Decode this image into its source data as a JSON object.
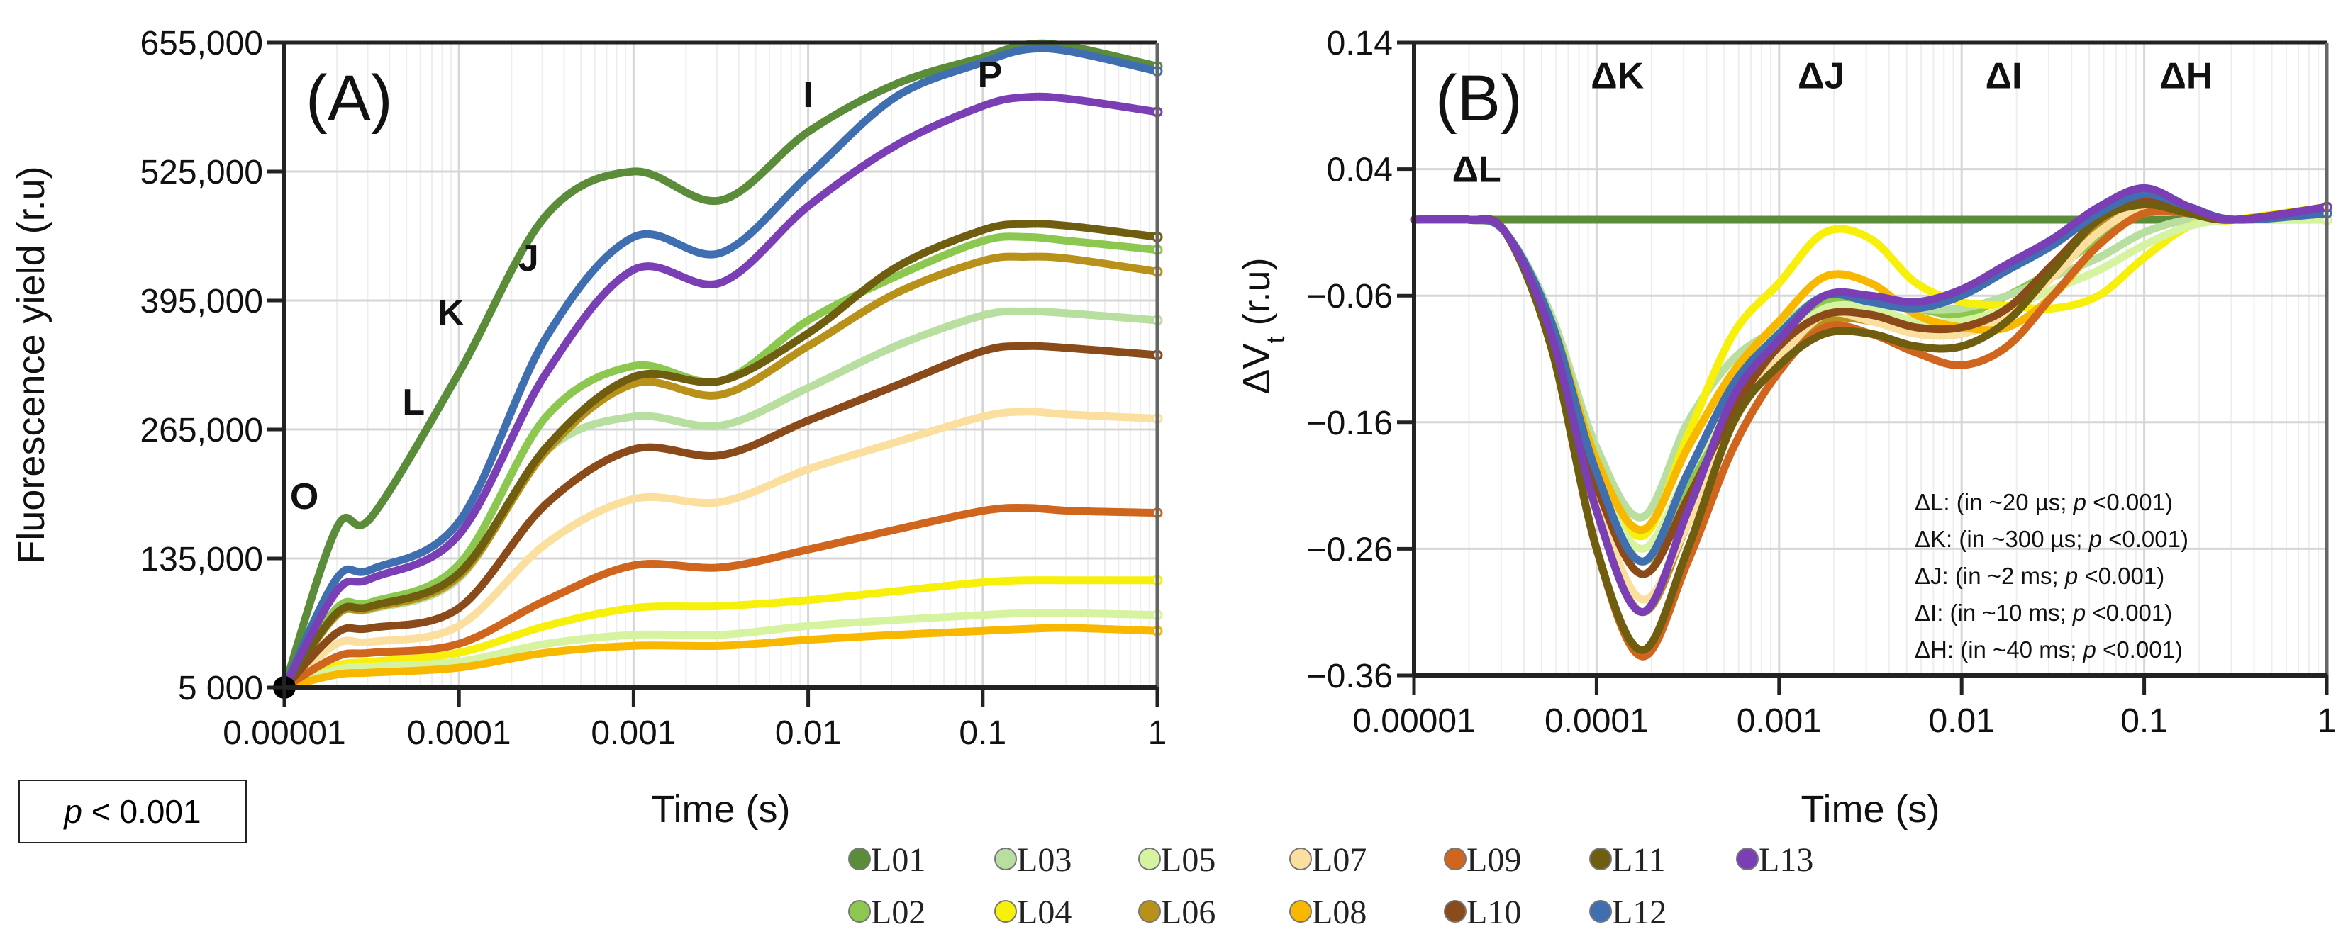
{
  "p_box": {
    "p": "p",
    "rest": " < 0.001"
  },
  "chart_data": [
    {
      "type": "line",
      "panel_label": "(A)",
      "xlabel": "Time (s)",
      "ylabel": "Fluorescence yield (r.u)",
      "xscale": "log",
      "xlim": [
        1e-05,
        1
      ],
      "ylim": [
        5000,
        655000
      ],
      "xticks": [
        "0.00001",
        "0.0001",
        "0.001",
        "0.01",
        "0.1",
        "1"
      ],
      "yticks": [
        {
          "v": 655000,
          "label": "655,000"
        },
        {
          "v": 525000,
          "label": "525,000"
        },
        {
          "v": 395000,
          "label": "395,000"
        },
        {
          "v": 265000,
          "label": "265,000"
        },
        {
          "v": 135000,
          "label": "135,000"
        },
        {
          "v": 5000,
          "label": "5 000"
        }
      ],
      "grid": true,
      "annotations": [
        {
          "text": "O",
          "t": 1.3e-05,
          "v": 185000
        },
        {
          "text": "L",
          "t": 5.5e-05,
          "v": 280000
        },
        {
          "text": "K",
          "t": 9e-05,
          "v": 370000
        },
        {
          "text": "J",
          "t": 0.00025,
          "v": 425000
        },
        {
          "text": "I",
          "t": 0.01,
          "v": 590000
        },
        {
          "text": "P",
          "t": 0.11,
          "v": 610000
        }
      ],
      "log_t": [
        -5,
        -4.7,
        -4.5,
        -4,
        -3.5,
        -3,
        -2.5,
        -2,
        -1.5,
        -1,
        -0.75,
        -0.5,
        0
      ],
      "series": [
        {
          "name": "L01",
          "values": [
            5000,
            166000,
            177000,
            322000,
            481000,
            525000,
            496000,
            565000,
            613000,
            640000,
            653000,
            651000,
            631000
          ]
        },
        {
          "name": "L02",
          "values": [
            5000,
            85000,
            91000,
            129000,
            278000,
            329000,
            314000,
            375000,
            419000,
            455000,
            459000,
            455000,
            446000
          ]
        },
        {
          "name": "L03",
          "values": [
            5000,
            78000,
            84000,
            115000,
            243000,
            278000,
            269000,
            307000,
            349000,
            380000,
            384000,
            382000,
            375000
          ]
        },
        {
          "name": "L04",
          "values": [
            5000,
            27000,
            31000,
            40000,
            67000,
            85000,
            87000,
            93000,
            102000,
            111000,
            113000,
            113000,
            113000
          ]
        },
        {
          "name": "L05",
          "values": [
            5000,
            23000,
            26000,
            31000,
            49000,
            58000,
            58000,
            67000,
            73000,
            78000,
            80000,
            80000,
            78000
          ]
        },
        {
          "name": "L06",
          "values": [
            5000,
            78000,
            85000,
            117000,
            243000,
            311000,
            300000,
            349000,
            402000,
            435000,
            439000,
            437000,
            424000
          ]
        },
        {
          "name": "L07",
          "values": [
            5000,
            49000,
            51000,
            67000,
            150000,
            195000,
            192000,
            225000,
            252000,
            278000,
            283000,
            280000,
            276000
          ]
        },
        {
          "name": "L08",
          "values": [
            5000,
            18000,
            20000,
            25000,
            40000,
            47000,
            47000,
            53000,
            58000,
            62000,
            64000,
            65000,
            62000
          ]
        },
        {
          "name": "L09",
          "values": [
            5000,
            36000,
            40000,
            49000,
            93000,
            128000,
            126000,
            144000,
            164000,
            183000,
            186000,
            183000,
            181000
          ]
        },
        {
          "name": "L10",
          "values": [
            5000,
            60000,
            65000,
            85000,
            190000,
            245000,
            239000,
            274000,
            309000,
            344000,
            349000,
            347000,
            340000
          ]
        },
        {
          "name": "L11",
          "values": [
            5000,
            80000,
            87000,
            120000,
            247000,
            318000,
            314000,
            362000,
            428000,
            466000,
            472000,
            470000,
            459000
          ]
        },
        {
          "name": "L12",
          "values": [
            5000,
            115000,
            124000,
            172000,
            358000,
            459000,
            443000,
            521000,
            600000,
            635000,
            648000,
            646000,
            626000
          ]
        },
        {
          "name": "L13",
          "values": [
            5000,
            102000,
            115000,
            159000,
            322000,
            426000,
            413000,
            490000,
            551000,
            591000,
            600000,
            598000,
            585000
          ]
        }
      ]
    },
    {
      "type": "line",
      "panel_label": "(B)",
      "xlabel": "Time (s)",
      "ylabel": "ΔV",
      "ylabel_sub": "t",
      "ylabel_rest": " (r.u)",
      "xscale": "log",
      "xlim": [
        1e-05,
        1
      ],
      "ylim": [
        -0.36,
        0.14
      ],
      "xticks": [
        "0.00001",
        "0.0001",
        "0.001",
        "0.01",
        "0.1",
        "1"
      ],
      "yticks": [
        {
          "v": 0.14,
          "label": "0.14"
        },
        {
          "v": 0.04,
          "label": "0.04"
        },
        {
          "v": -0.06,
          "label": "−0.06"
        },
        {
          "v": -0.16,
          "label": "−0.16"
        },
        {
          "v": -0.26,
          "label": "−0.26"
        },
        {
          "v": -0.36,
          "label": "−0.36"
        }
      ],
      "grid": true,
      "annotations": [
        {
          "text": "ΔL",
          "t": 2.2e-05,
          "v": 0.03
        },
        {
          "text": "ΔK",
          "t": 0.00013,
          "v": 0.104
        },
        {
          "text": "ΔJ",
          "t": 0.0017,
          "v": 0.104
        },
        {
          "text": "ΔI",
          "t": 0.017,
          "v": 0.104
        },
        {
          "text": "ΔH",
          "t": 0.17,
          "v": 0.104
        }
      ],
      "stats": [
        {
          "pre": "ΔL: (in ~20 µs; ",
          "p": "p",
          "post": " <0.001)"
        },
        {
          "pre": "ΔK: (in ~300 µs; ",
          "p": "p",
          "post": " <0.001)"
        },
        {
          "pre": "ΔJ: (in ~2 ms; ",
          "p": "p",
          "post": " <0.001)"
        },
        {
          "pre": "ΔI: (in ~10 ms; ",
          "p": "p",
          "post": " <0.001)"
        },
        {
          "pre": "ΔH: (in ~40 ms; ",
          "p": "p",
          "post": " <0.001)"
        }
      ],
      "log_t": [
        -5,
        -4.7,
        -4.5,
        -4.25,
        -4,
        -3.75,
        -3.5,
        -3.25,
        -3,
        -2.75,
        -2.5,
        -2.25,
        -2,
        -1.75,
        -1.5,
        -1.25,
        -1,
        -0.75,
        -0.5,
        0
      ],
      "series": [
        {
          "name": "L01",
          "values": [
            0,
            0,
            0,
            0,
            0,
            0,
            0,
            0,
            0,
            0,
            0,
            0,
            0,
            0,
            0,
            0,
            0,
            0,
            0,
            0
          ]
        },
        {
          "name": "L02",
          "values": [
            0,
            0,
            -0.01,
            -0.08,
            -0.2,
            -0.27,
            -0.21,
            -0.14,
            -0.1,
            -0.065,
            -0.065,
            -0.07,
            -0.075,
            -0.06,
            -0.04,
            -0.015,
            0.005,
            0.005,
            0,
            0.005
          ]
        },
        {
          "name": "L03",
          "values": [
            0,
            0,
            -0.01,
            -0.075,
            -0.18,
            -0.235,
            -0.16,
            -0.11,
            -0.085,
            -0.06,
            -0.06,
            -0.07,
            -0.07,
            -0.06,
            -0.045,
            -0.03,
            -0.01,
            0,
            0,
            0
          ]
        },
        {
          "name": "L04",
          "values": [
            0,
            0,
            -0.01,
            -0.08,
            -0.19,
            -0.25,
            -0.17,
            -0.09,
            -0.05,
            -0.01,
            -0.015,
            -0.05,
            -0.065,
            -0.068,
            -0.07,
            -0.06,
            -0.03,
            -0.005,
            0,
            0.01
          ]
        },
        {
          "name": "L05",
          "values": [
            0,
            0,
            -0.01,
            -0.08,
            -0.2,
            -0.26,
            -0.2,
            -0.14,
            -0.1,
            -0.07,
            -0.07,
            -0.08,
            -0.08,
            -0.07,
            -0.055,
            -0.04,
            -0.02,
            -0.005,
            0,
            0
          ]
        },
        {
          "name": "L06",
          "values": [
            0,
            0,
            -0.01,
            -0.09,
            -0.23,
            -0.31,
            -0.24,
            -0.16,
            -0.11,
            -0.08,
            -0.08,
            -0.09,
            -0.09,
            -0.075,
            -0.04,
            -0.005,
            0.015,
            0.005,
            0,
            0.01
          ]
        },
        {
          "name": "L07",
          "values": [
            0,
            0,
            -0.01,
            -0.09,
            -0.22,
            -0.3,
            -0.24,
            -0.16,
            -0.11,
            -0.075,
            -0.08,
            -0.09,
            -0.09,
            -0.075,
            -0.045,
            -0.01,
            0.01,
            0.005,
            0,
            0.01
          ]
        },
        {
          "name": "L08",
          "values": [
            0,
            0,
            -0.01,
            -0.08,
            -0.19,
            -0.245,
            -0.18,
            -0.12,
            -0.08,
            -0.045,
            -0.05,
            -0.075,
            -0.085,
            -0.085,
            -0.06,
            -0.02,
            0.005,
            0.005,
            0,
            0.01
          ]
        },
        {
          "name": "L09",
          "values": [
            0,
            0,
            -0.01,
            -0.1,
            -0.26,
            -0.345,
            -0.27,
            -0.18,
            -0.12,
            -0.085,
            -0.09,
            -0.105,
            -0.115,
            -0.1,
            -0.06,
            -0.02,
            0.005,
            0.005,
            0,
            0.01
          ]
        },
        {
          "name": "L10",
          "values": [
            0,
            0,
            -0.01,
            -0.09,
            -0.21,
            -0.28,
            -0.22,
            -0.15,
            -0.1,
            -0.075,
            -0.075,
            -0.085,
            -0.085,
            -0.07,
            -0.035,
            0,
            0.015,
            0.005,
            0,
            0.01
          ]
        },
        {
          "name": "L11",
          "values": [
            0,
            0,
            -0.01,
            -0.1,
            -0.26,
            -0.34,
            -0.26,
            -0.16,
            -0.115,
            -0.09,
            -0.09,
            -0.1,
            -0.1,
            -0.08,
            -0.04,
            0,
            0.012,
            0.005,
            0,
            0.005
          ]
        },
        {
          "name": "L12",
          "values": [
            0,
            0,
            -0.01,
            -0.08,
            -0.2,
            -0.27,
            -0.2,
            -0.13,
            -0.09,
            -0.06,
            -0.065,
            -0.07,
            -0.06,
            -0.04,
            -0.02,
            0.005,
            0.02,
            0.01,
            0,
            0.005
          ]
        },
        {
          "name": "L13",
          "values": [
            0,
            0,
            -0.01,
            -0.09,
            -0.23,
            -0.31,
            -0.23,
            -0.14,
            -0.095,
            -0.06,
            -0.06,
            -0.065,
            -0.055,
            -0.035,
            -0.015,
            0.01,
            0.025,
            0.01,
            0,
            0.01
          ]
        }
      ]
    }
  ],
  "legend": [
    {
      "name": "L01",
      "color": "#5b8c3a"
    },
    {
      "name": "L03",
      "color": "#b8dea0"
    },
    {
      "name": "L05",
      "color": "#d6f3a0"
    },
    {
      "name": "L07",
      "color": "#fbdf9e"
    },
    {
      "name": "L09",
      "color": "#d0661e"
    },
    {
      "name": "L11",
      "color": "#6f5d10"
    },
    {
      "name": "L13",
      "color": "#7a3fb5"
    },
    {
      "name": "L02",
      "color": "#8cc850"
    },
    {
      "name": "L04",
      "color": "#f7f00a"
    },
    {
      "name": "L06",
      "color": "#b8911a"
    },
    {
      "name": "L08",
      "color": "#f9b800"
    },
    {
      "name": "L10",
      "color": "#8b4a1a"
    },
    {
      "name": "L12",
      "color": "#3f6fb0"
    }
  ]
}
